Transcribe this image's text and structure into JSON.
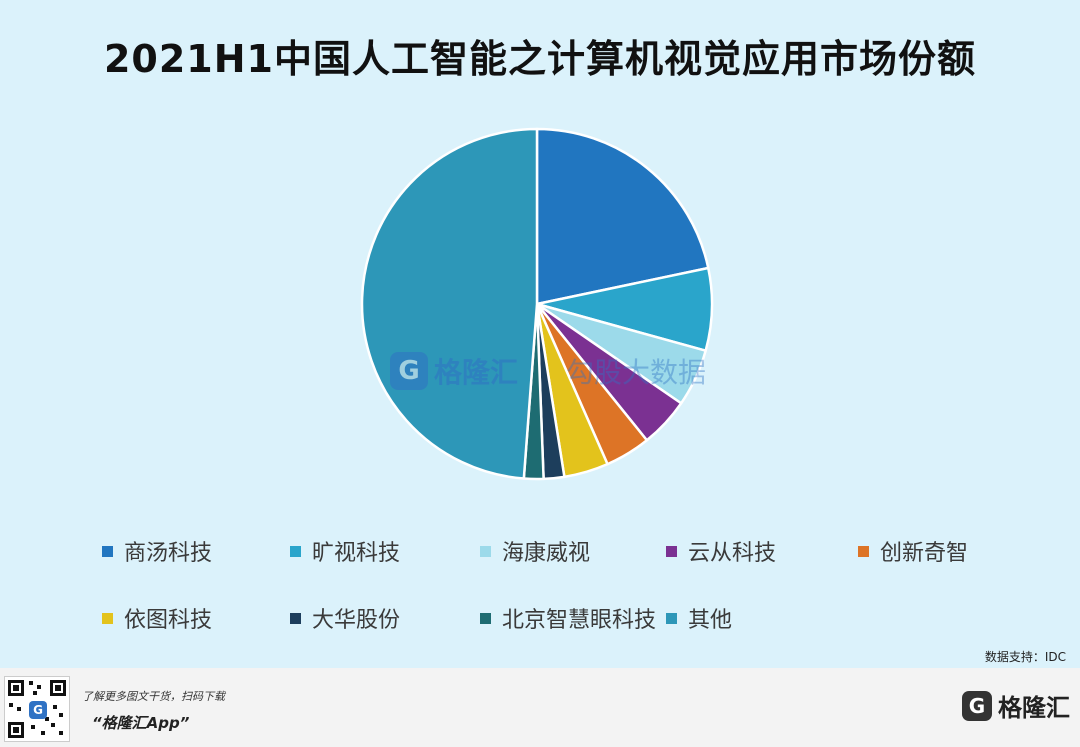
{
  "chart_data": {
    "type": "pie",
    "title": "2021H1中国人工智能之计算机视觉应用市场份额",
    "series": [
      {
        "name": "商汤科技",
        "value": 21.7,
        "color": "#2176c0"
      },
      {
        "name": "旷视科技",
        "value": 7.6,
        "color": "#2aa5cb"
      },
      {
        "name": "海康威视",
        "value": 5.3,
        "color": "#9cdaea"
      },
      {
        "name": "云从科技",
        "value": 4.6,
        "color": "#7b3192"
      },
      {
        "name": "创新奇智",
        "value": 4.2,
        "color": "#dd7426"
      },
      {
        "name": "依图科技",
        "value": 4.1,
        "color": "#e3c31c"
      },
      {
        "name": "大华股份",
        "value": 1.9,
        "color": "#1d3e5c"
      },
      {
        "name": "北京智慧眼科技",
        "value": 1.8,
        "color": "#1e6c72"
      },
      {
        "name": "其他",
        "value": 48.8,
        "color": "#2d97b8"
      }
    ]
  },
  "watermark": {
    "logo_letter": "G",
    "brand": "格隆汇",
    "right_text": "勾股大数据"
  },
  "source": "数据支持：IDC",
  "footer": {
    "qr_letter": "G",
    "promo_line1": "了解更多图文干货，扫码下载",
    "promo_line2": "“格隆汇App”",
    "brand_logo": "G",
    "brand_text": "格隆汇"
  }
}
